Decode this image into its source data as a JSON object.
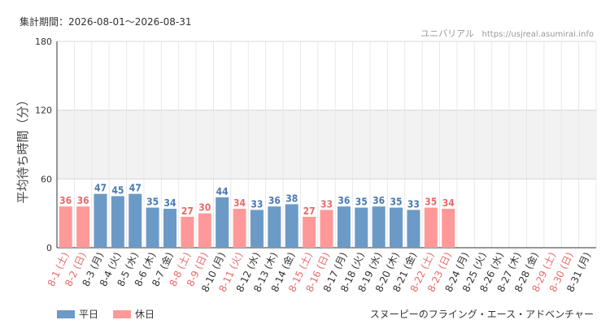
{
  "header": {
    "period": "集計期間：2026-08-01〜2026-08-31",
    "park": "ユニバリアル",
    "url": "https://usjreal.asumirai.info"
  },
  "footer": {
    "attraction": "スヌーピーのフライング・エース・アドベンチャー"
  },
  "colors": {
    "weekday": "#6b9ac7",
    "holiday": "#ff9999",
    "weekday_text": "#4a7ab0",
    "holiday_text": "#e86a6a"
  },
  "chart_data": {
    "type": "bar",
    "ylabel": "平均待ち時間（分）",
    "ylim": [
      0,
      180
    ],
    "yticks": [
      0,
      60,
      120,
      180
    ],
    "legend": [
      {
        "key": "weekday",
        "label": "平日"
      },
      {
        "key": "holiday",
        "label": "休日"
      }
    ],
    "categories": [
      "8-1 (土)",
      "8-2 (日)",
      "8-3 (月)",
      "8-4 (火)",
      "8-5 (水)",
      "8-6 (木)",
      "8-7 (金)",
      "8-8 (土)",
      "8-9 (日)",
      "8-10 (月)",
      "8-11 (火)",
      "8-12 (水)",
      "8-13 (木)",
      "8-14 (金)",
      "8-15 (土)",
      "8-16 (日)",
      "8-17 (月)",
      "8-18 (火)",
      "8-19 (水)",
      "8-20 (木)",
      "8-21 (金)",
      "8-22 (土)",
      "8-23 (日)",
      "8-24 (月)",
      "8-25 (火)",
      "8-26 (水)",
      "8-27 (木)",
      "8-28 (金)",
      "8-29 (土)",
      "8-30 (日)",
      "8-31 (月)"
    ],
    "day_type": [
      "holiday",
      "holiday",
      "weekday",
      "weekday",
      "weekday",
      "weekday",
      "weekday",
      "holiday",
      "holiday",
      "weekday",
      "holiday",
      "weekday",
      "weekday",
      "weekday",
      "holiday",
      "holiday",
      "weekday",
      "weekday",
      "weekday",
      "weekday",
      "weekday",
      "holiday",
      "holiday",
      "weekday",
      "weekday",
      "weekday",
      "weekday",
      "weekday",
      "holiday",
      "holiday",
      "weekday"
    ],
    "values": [
      36,
      36,
      47,
      45,
      47,
      35,
      34,
      27,
      30,
      44,
      34,
      33,
      36,
      38,
      27,
      33,
      36,
      35,
      36,
      35,
      33,
      35,
      34,
      null,
      null,
      null,
      null,
      null,
      null,
      null,
      null
    ]
  }
}
